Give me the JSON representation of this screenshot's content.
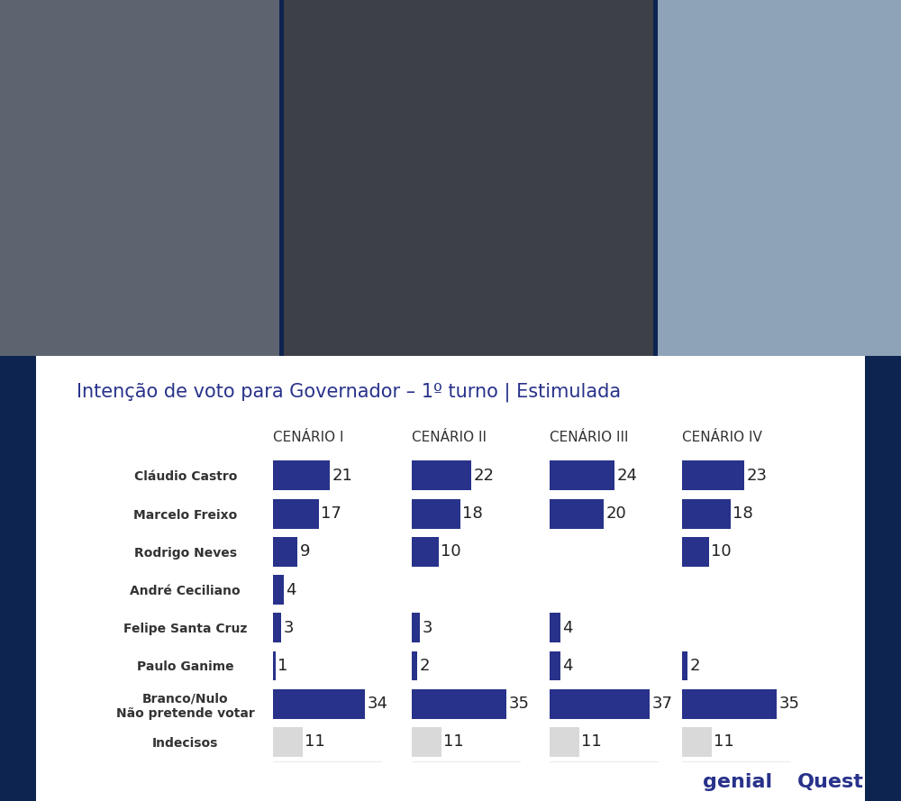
{
  "title": "Intenção de voto para Governador – 1º turno | Estimulada",
  "logos": [
    "genial",
    "Quest"
  ],
  "chart_data": [
    {
      "type": "bar",
      "orientation": "horizontal",
      "title": "CENÁRIO I",
      "categories": [
        "Cláudio Castro",
        "Marcelo Freixo",
        "Rodrigo Neves",
        "André Ceciliano",
        "Felipe Santa Cruz",
        "Paulo Ganime",
        "Branco/Nulo\nNão pretende votar",
        "Indecisos"
      ],
      "values": [
        21,
        17,
        9,
        4,
        3,
        1,
        34,
        11
      ],
      "colors": [
        "#28328a",
        "#28328a",
        "#28328a",
        "#28328a",
        "#28328a",
        "#28328a",
        "#28328a",
        "#d9d9d9"
      ],
      "xlim": [
        0,
        40
      ],
      "data_labels": true,
      "tick_labels": "y"
    },
    {
      "type": "bar",
      "orientation": "horizontal",
      "title": "CENÁRIO II",
      "categories": [
        "Cláudio Castro",
        "Marcelo Freixo",
        "Rodrigo Neves",
        "André Ceciliano",
        "Felipe Santa Cruz",
        "Paulo Ganime",
        "Branco/Nulo\nNão pretende votar",
        "Indecisos"
      ],
      "values": [
        22,
        18,
        10,
        null,
        3,
        2,
        35,
        11
      ],
      "colors": [
        "#28328a",
        "#28328a",
        "#28328a",
        "#28328a",
        "#28328a",
        "#28328a",
        "#28328a",
        "#d9d9d9"
      ],
      "xlim": [
        0,
        40
      ],
      "data_labels": true,
      "tick_labels": false
    },
    {
      "type": "bar",
      "orientation": "horizontal",
      "title": "CENÁRIO III",
      "categories": [
        "Cláudio Castro",
        "Marcelo Freixo",
        "Rodrigo Neves",
        "André Ceciliano",
        "Felipe Santa Cruz",
        "Paulo Ganime",
        "Branco/Nulo\nNão pretende votar",
        "Indecisos"
      ],
      "values": [
        24,
        20,
        null,
        null,
        4,
        4,
        37,
        11
      ],
      "colors": [
        "#28328a",
        "#28328a",
        "#28328a",
        "#28328a",
        "#28328a",
        "#28328a",
        "#28328a",
        "#d9d9d9"
      ],
      "xlim": [
        0,
        40
      ],
      "data_labels": true,
      "tick_labels": false
    },
    {
      "type": "bar",
      "orientation": "horizontal",
      "title": "CENÁRIO IV",
      "categories": [
        "Cláudio Castro",
        "Marcelo Freixo",
        "Rodrigo Neves",
        "André Ceciliano",
        "Felipe Santa Cruz",
        "Paulo Ganime",
        "Branco/Nulo\nNão pretende votar",
        "Indecisos"
      ],
      "values": [
        23,
        18,
        10,
        null,
        null,
        2,
        35,
        11
      ],
      "colors": [
        "#28328a",
        "#28328a",
        "#28328a",
        "#28328a",
        "#28328a",
        "#28328a",
        "#28328a",
        "#d9d9d9"
      ],
      "xlim": [
        0,
        40
      ],
      "data_labels": true,
      "tick_labels": false
    }
  ]
}
